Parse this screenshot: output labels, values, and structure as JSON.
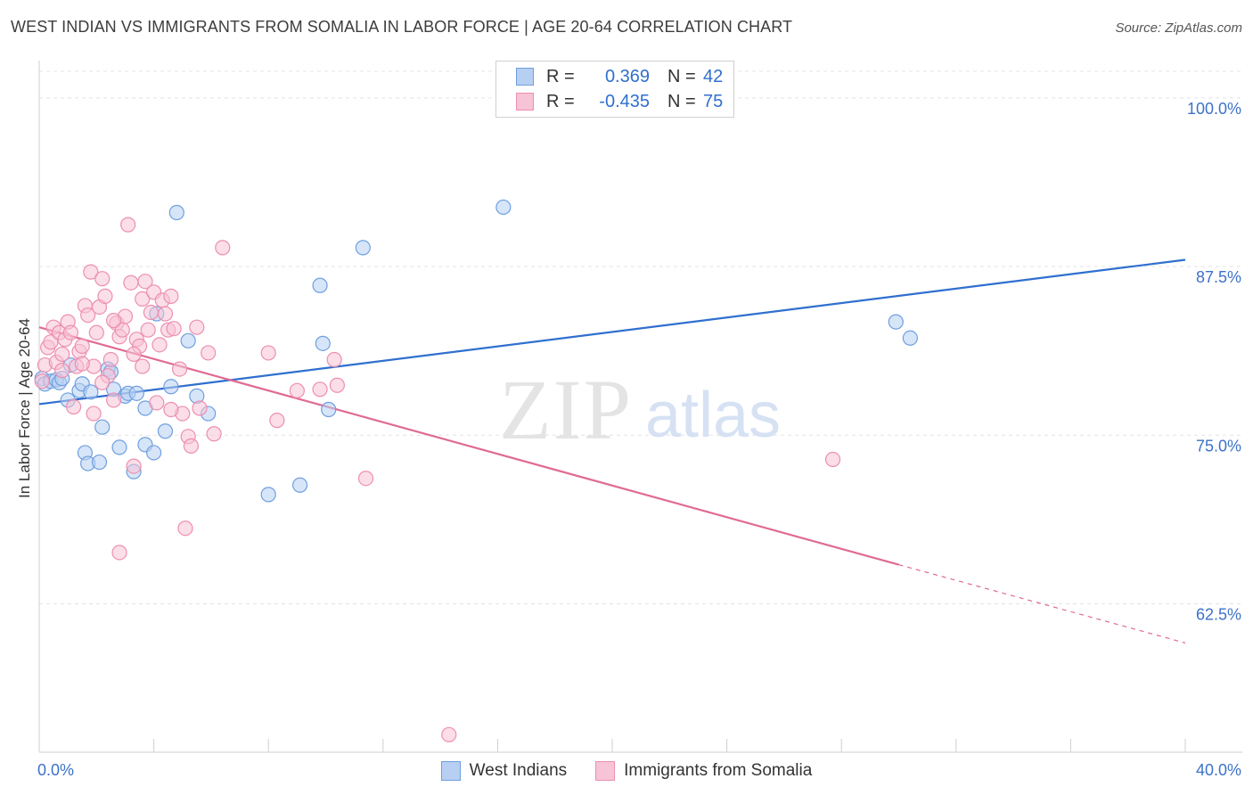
{
  "header": {
    "title": "WEST INDIAN VS IMMIGRANTS FROM SOMALIA IN LABOR FORCE | AGE 20-64 CORRELATION CHART",
    "source": "Source: ZipAtlas.com"
  },
  "watermark": {
    "zip": "ZIP",
    "atlas": "atlas"
  },
  "legend_top": {
    "rows": [
      {
        "r_label": "R =",
        "r_value": "0.369",
        "n_label": "N =",
        "n_value": "42"
      },
      {
        "r_label": "R =",
        "r_value": "-0.435",
        "n_label": "N =",
        "n_value": "75"
      }
    ]
  },
  "chart_data": {
    "type": "scatter",
    "ylabel": "In Labor Force | Age 20-64",
    "xlim": [
      0,
      40
    ],
    "ylim": [
      51.5,
      102.5
    ],
    "x_tick_labels": [
      "0.0%",
      "40.0%"
    ],
    "y_ticks": [
      {
        "value": 100.0,
        "label": "100.0%"
      },
      {
        "value": 87.5,
        "label": "87.5%"
      },
      {
        "value": 75.0,
        "label": "75.0%"
      },
      {
        "value": 62.5,
        "label": "62.5%"
      }
    ],
    "grid": true,
    "legend_position": "top-center",
    "series": [
      {
        "name": "West Indians",
        "color": "#6f9fe0",
        "fill": "#b7cff2",
        "line_color": "#2f6fcf",
        "trend": {
          "x": [
            0,
            40
          ],
          "y": [
            77.3,
            88.0
          ]
        },
        "points": [
          [
            0.1,
            79.2
          ],
          [
            0.2,
            78.8
          ],
          [
            0.4,
            79.0
          ],
          [
            0.6,
            79.1
          ],
          [
            0.7,
            78.9
          ],
          [
            0.8,
            79.2
          ],
          [
            1.0,
            77.6
          ],
          [
            1.1,
            80.2
          ],
          [
            1.4,
            78.3
          ],
          [
            1.5,
            78.8
          ],
          [
            1.6,
            73.7
          ],
          [
            1.7,
            72.9
          ],
          [
            1.8,
            78.2
          ],
          [
            2.1,
            73.0
          ],
          [
            2.2,
            75.6
          ],
          [
            2.4,
            79.9
          ],
          [
            2.5,
            79.7
          ],
          [
            2.6,
            78.4
          ],
          [
            2.8,
            74.1
          ],
          [
            3.0,
            77.9
          ],
          [
            3.1,
            78.1
          ],
          [
            3.3,
            72.3
          ],
          [
            3.4,
            78.1
          ],
          [
            3.7,
            77.0
          ],
          [
            3.7,
            74.3
          ],
          [
            4.0,
            73.7
          ],
          [
            4.1,
            84.0
          ],
          [
            4.4,
            75.3
          ],
          [
            4.6,
            78.6
          ],
          [
            4.8,
            91.5
          ],
          [
            5.2,
            82.0
          ],
          [
            5.5,
            77.9
          ],
          [
            5.9,
            76.6
          ],
          [
            8.0,
            70.6
          ],
          [
            9.1,
            71.3
          ],
          [
            9.8,
            86.1
          ],
          [
            9.9,
            81.8
          ],
          [
            10.1,
            76.9
          ],
          [
            11.3,
            88.9
          ],
          [
            16.2,
            91.9
          ],
          [
            29.9,
            83.4
          ],
          [
            30.4,
            82.2
          ]
        ]
      },
      {
        "name": "Immigrants from Somalia",
        "color": "#ec8fb0",
        "fill": "#f7c3d6",
        "line_color": "#e06a92",
        "trend": {
          "x": [
            0,
            30
          ],
          "y": [
            83.0,
            65.4
          ]
        },
        "trend_dashed": {
          "x": [
            30,
            40
          ],
          "y": [
            65.4,
            59.6
          ]
        },
        "points": [
          [
            0.1,
            79.0
          ],
          [
            0.2,
            80.2
          ],
          [
            0.3,
            81.5
          ],
          [
            0.4,
            81.9
          ],
          [
            0.5,
            83.0
          ],
          [
            0.6,
            80.4
          ],
          [
            0.7,
            82.6
          ],
          [
            0.8,
            81.0
          ],
          [
            0.9,
            82.1
          ],
          [
            1.0,
            83.4
          ],
          [
            1.1,
            82.6
          ],
          [
            1.2,
            77.1
          ],
          [
            1.3,
            80.1
          ],
          [
            1.4,
            81.2
          ],
          [
            1.5,
            81.6
          ],
          [
            1.6,
            84.6
          ],
          [
            1.7,
            83.9
          ],
          [
            1.8,
            87.1
          ],
          [
            1.9,
            80.1
          ],
          [
            2.0,
            82.6
          ],
          [
            2.1,
            84.5
          ],
          [
            2.2,
            86.6
          ],
          [
            2.3,
            85.3
          ],
          [
            2.4,
            79.4
          ],
          [
            2.5,
            80.6
          ],
          [
            2.6,
            77.6
          ],
          [
            2.7,
            83.3
          ],
          [
            2.8,
            82.3
          ],
          [
            2.9,
            82.8
          ],
          [
            3.0,
            83.8
          ],
          [
            3.1,
            90.6
          ],
          [
            3.2,
            86.3
          ],
          [
            3.3,
            72.7
          ],
          [
            3.4,
            82.1
          ],
          [
            3.5,
            81.6
          ],
          [
            3.6,
            85.1
          ],
          [
            3.7,
            86.4
          ],
          [
            3.8,
            82.8
          ],
          [
            3.9,
            84.1
          ],
          [
            4.0,
            85.6
          ],
          [
            4.1,
            77.4
          ],
          [
            4.2,
            81.7
          ],
          [
            4.3,
            85.0
          ],
          [
            4.4,
            84.0
          ],
          [
            4.5,
            82.8
          ],
          [
            4.6,
            85.3
          ],
          [
            4.7,
            82.9
          ],
          [
            4.9,
            79.9
          ],
          [
            5.0,
            76.6
          ],
          [
            5.1,
            68.1
          ],
          [
            5.2,
            74.9
          ],
          [
            5.3,
            74.2
          ],
          [
            5.5,
            83.0
          ],
          [
            5.6,
            77.0
          ],
          [
            5.9,
            81.1
          ],
          [
            6.1,
            75.1
          ],
          [
            6.4,
            88.9
          ],
          [
            8.0,
            81.1
          ],
          [
            8.3,
            76.1
          ],
          [
            9.0,
            78.3
          ],
          [
            9.8,
            78.4
          ],
          [
            10.3,
            80.6
          ],
          [
            10.4,
            78.7
          ],
          [
            11.4,
            71.8
          ],
          [
            2.8,
            66.3
          ],
          [
            14.3,
            52.8
          ],
          [
            27.7,
            73.2
          ],
          [
            1.9,
            76.6
          ],
          [
            3.6,
            80.1
          ],
          [
            2.6,
            83.5
          ],
          [
            1.5,
            80.3
          ],
          [
            0.8,
            79.8
          ],
          [
            4.6,
            76.9
          ],
          [
            3.3,
            81.0
          ],
          [
            2.2,
            78.9
          ]
        ]
      }
    ]
  }
}
